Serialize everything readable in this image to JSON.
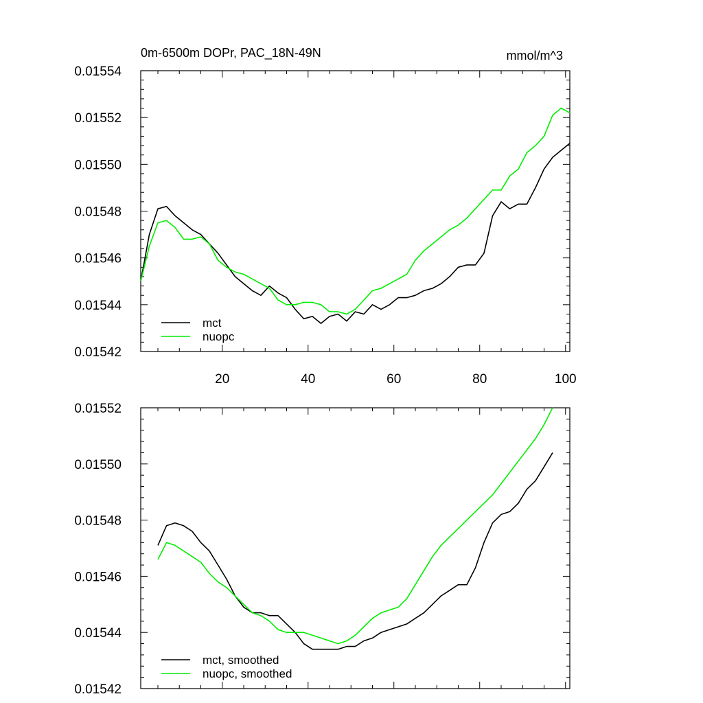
{
  "chart_data": [
    {
      "type": "line",
      "title": "0m-6500m DOPr, PAC_18N-49N",
      "units": "mmol/m^3",
      "xlabel": "",
      "ylabel": "",
      "xlim": [
        1,
        101
      ],
      "ylim": [
        0.01542,
        0.01554
      ],
      "xticks": [
        20,
        40,
        60,
        80,
        100
      ],
      "yticks": [
        "0.01542",
        "0.01544",
        "0.01546",
        "0.01548",
        "0.01550",
        "0.01552",
        "0.01554"
      ],
      "legend_position": "bottom-left",
      "series": [
        {
          "name": "mct",
          "color": "#000000",
          "x": [
            1,
            3,
            5,
            7,
            9,
            11,
            13,
            15,
            17,
            19,
            21,
            23,
            25,
            27,
            29,
            31,
            33,
            35,
            37,
            39,
            41,
            43,
            45,
            47,
            49,
            51,
            53,
            55,
            57,
            59,
            61,
            63,
            65,
            67,
            69,
            71,
            73,
            75,
            77,
            79,
            81,
            83,
            85,
            87,
            89,
            91,
            93,
            95,
            97,
            99,
            101
          ],
          "values": [
            0.01545,
            0.01547,
            0.015481,
            0.015482,
            0.015478,
            0.015475,
            0.015472,
            0.01547,
            0.015466,
            0.015462,
            0.015457,
            0.015452,
            0.015449,
            0.015446,
            0.015444,
            0.015448,
            0.015445,
            0.015443,
            0.015438,
            0.015434,
            0.015435,
            0.015432,
            0.015435,
            0.015436,
            0.015433,
            0.015437,
            0.015436,
            0.01544,
            0.015438,
            0.01544,
            0.015443,
            0.015443,
            0.015444,
            0.015446,
            0.015447,
            0.015449,
            0.015452,
            0.015456,
            0.015457,
            0.015457,
            0.015462,
            0.015478,
            0.015484,
            0.015481,
            0.015483,
            0.015483,
            0.01549,
            0.015498,
            0.015503,
            0.015506,
            0.015509
          ]
        },
        {
          "name": "nuopc",
          "color": "#00ee00",
          "x": [
            1,
            3,
            5,
            7,
            9,
            11,
            13,
            15,
            17,
            19,
            21,
            23,
            25,
            27,
            29,
            31,
            33,
            35,
            37,
            39,
            41,
            43,
            45,
            47,
            49,
            51,
            53,
            55,
            57,
            59,
            61,
            63,
            65,
            67,
            69,
            71,
            73,
            75,
            77,
            79,
            81,
            83,
            85,
            87,
            89,
            91,
            93,
            95,
            97,
            99,
            101
          ],
          "values": [
            0.01545,
            0.015465,
            0.015475,
            0.015476,
            0.015473,
            0.015468,
            0.015468,
            0.015469,
            0.015466,
            0.015459,
            0.015456,
            0.015454,
            0.015453,
            0.015451,
            0.015449,
            0.015447,
            0.015442,
            0.01544,
            0.01544,
            0.015441,
            0.015441,
            0.01544,
            0.015437,
            0.015437,
            0.015436,
            0.015438,
            0.015442,
            0.015446,
            0.015447,
            0.015449,
            0.015451,
            0.015453,
            0.015459,
            0.015463,
            0.015466,
            0.015469,
            0.015472,
            0.015474,
            0.015477,
            0.015481,
            0.015485,
            0.015489,
            0.015489,
            0.015495,
            0.015498,
            0.015505,
            0.015508,
            0.015512,
            0.015521,
            0.015524,
            0.015522
          ]
        }
      ]
    },
    {
      "type": "line",
      "title": "",
      "units": "",
      "xlabel": "",
      "ylabel": "",
      "xlim": [
        1,
        101
      ],
      "ylim": [
        0.01542,
        0.01552
      ],
      "xticks": [
        20,
        40,
        60,
        80,
        100
      ],
      "yticks": [
        "0.01542",
        "0.01544",
        "0.01546",
        "0.01548",
        "0.01550",
        "0.01552"
      ],
      "legend_position": "bottom-left",
      "series": [
        {
          "name": "mct, smoothed",
          "color": "#000000",
          "x": [
            5,
            7,
            9,
            11,
            13,
            15,
            17,
            19,
            21,
            23,
            25,
            27,
            29,
            31,
            33,
            35,
            37,
            39,
            41,
            43,
            45,
            47,
            49,
            51,
            53,
            55,
            57,
            59,
            61,
            63,
            65,
            67,
            69,
            71,
            73,
            75,
            77,
            79,
            81,
            83,
            85,
            87,
            89,
            91,
            93,
            95,
            97
          ],
          "values": [
            0.015471,
            0.015478,
            0.015479,
            0.015478,
            0.015476,
            0.015472,
            0.015469,
            0.015464,
            0.015459,
            0.015453,
            0.015449,
            0.015447,
            0.015447,
            0.015446,
            0.015446,
            0.015443,
            0.01544,
            0.015436,
            0.015434,
            0.015434,
            0.015434,
            0.015434,
            0.015435,
            0.015435,
            0.015437,
            0.015438,
            0.01544,
            0.015441,
            0.015442,
            0.015443,
            0.015445,
            0.015447,
            0.01545,
            0.015453,
            0.015455,
            0.015457,
            0.015457,
            0.015463,
            0.015472,
            0.015479,
            0.015482,
            0.015483,
            0.015486,
            0.015491,
            0.015494,
            0.015499,
            0.015504
          ]
        },
        {
          "name": "nuopc, smoothed",
          "color": "#00ee00",
          "x": [
            5,
            7,
            9,
            11,
            13,
            15,
            17,
            19,
            21,
            23,
            25,
            27,
            29,
            31,
            33,
            35,
            37,
            39,
            41,
            43,
            45,
            47,
            49,
            51,
            53,
            55,
            57,
            59,
            61,
            63,
            65,
            67,
            69,
            71,
            73,
            75,
            77,
            79,
            81,
            83,
            85,
            87,
            89,
            91,
            93,
            95,
            97
          ],
          "values": [
            0.015466,
            0.015472,
            0.015471,
            0.015469,
            0.015467,
            0.015465,
            0.015461,
            0.015458,
            0.015456,
            0.015453,
            0.01545,
            0.015447,
            0.015446,
            0.015444,
            0.015441,
            0.01544,
            0.01544,
            0.01544,
            0.015439,
            0.015438,
            0.015437,
            0.015436,
            0.015437,
            0.015439,
            0.015442,
            0.015445,
            0.015447,
            0.015448,
            0.015449,
            0.015452,
            0.015457,
            0.015462,
            0.015467,
            0.015471,
            0.015474,
            0.015477,
            0.01548,
            0.015483,
            0.015486,
            0.015489,
            0.015493,
            0.015497,
            0.015501,
            0.015505,
            0.015509,
            0.015514,
            0.01552
          ]
        }
      ]
    }
  ]
}
